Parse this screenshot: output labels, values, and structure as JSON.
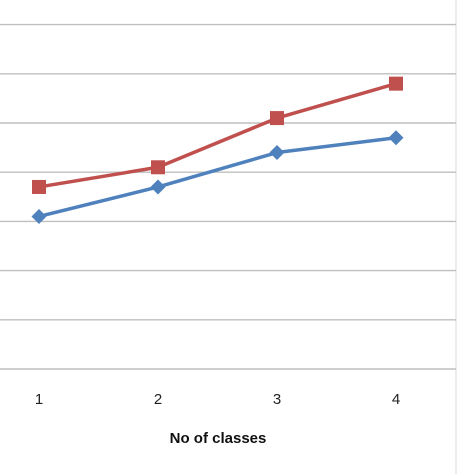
{
  "chart_data": {
    "type": "line",
    "title": "",
    "xlabel": "No of classes",
    "ylabel": "",
    "categories": [
      "1",
      "2",
      "3",
      "4"
    ],
    "ylim": [
      0,
      7.5
    ],
    "grid": true,
    "legend": "none",
    "series": [
      {
        "color": "#4F81BD",
        "marker": "diamond",
        "values": [
          3.1,
          3.7,
          4.4,
          4.7
        ]
      },
      {
        "color": "#C0504D",
        "marker": "square",
        "values": [
          3.7,
          4.1,
          5.1,
          5.8
        ]
      }
    ]
  }
}
